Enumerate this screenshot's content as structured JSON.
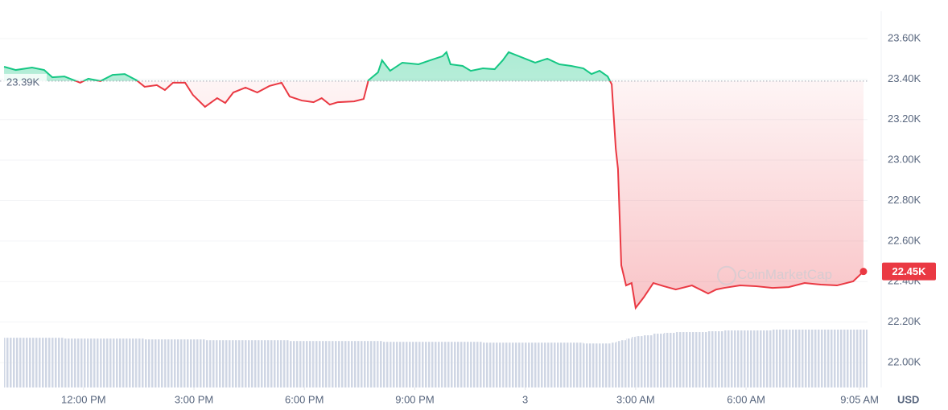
{
  "chart_data": {
    "type": "line",
    "x": [
      -2.16,
      -1.84,
      -1.4,
      -1.07,
      -0.85,
      -0.52,
      -0.09,
      0.13,
      0.46,
      0.79,
      1.12,
      1.44,
      1.66,
      1.99,
      2.21,
      2.43,
      2.76,
      2.97,
      3.3,
      3.63,
      3.85,
      4.07,
      4.4,
      4.72,
      5.05,
      5.38,
      5.6,
      5.93,
      6.25,
      6.47,
      6.69,
      6.91,
      7.35,
      7.61,
      7.74,
      8.0,
      8.11,
      8.33,
      8.66,
      9.1,
      9.42,
      9.75,
      9.86,
      9.97,
      10.3,
      10.52,
      10.85,
      11.17,
      11.39,
      11.55,
      11.94,
      12.27,
      12.6,
      12.93,
      13.25,
      13.58,
      13.8,
      14.02,
      14.24,
      14.35,
      14.46,
      14.52,
      14.61,
      14.74,
      14.89,
      15.0,
      15.22,
      15.48,
      15.77,
      16.09,
      16.53,
      16.97,
      17.19,
      17.41,
      17.84,
      18.28,
      18.72,
      19.16,
      19.59,
      20.03,
      20.47,
      20.91,
      21.19
    ],
    "values": [
      23461,
      23445,
      23457,
      23445,
      23409,
      23413,
      23382,
      23402,
      23390,
      23421,
      23425,
      23394,
      23362,
      23370,
      23346,
      23382,
      23382,
      23322,
      23263,
      23306,
      23282,
      23334,
      23358,
      23334,
      23366,
      23382,
      23314,
      23294,
      23286,
      23306,
      23274,
      23286,
      23290,
      23302,
      23394,
      23433,
      23493,
      23441,
      23481,
      23473,
      23493,
      23513,
      23533,
      23473,
      23465,
      23441,
      23453,
      23449,
      23493,
      23533,
      23505,
      23481,
      23501,
      23473,
      23465,
      23453,
      23425,
      23441,
      23413,
      23374,
      23056,
      22957,
      22480,
      22381,
      22393,
      22270,
      22322,
      22393,
      22377,
      22361,
      22381,
      22341,
      22361,
      22369,
      22381,
      22377,
      22369,
      22373,
      22393,
      22385,
      22381,
      22401,
      22450
    ],
    "volume": [
      61,
      61,
      61,
      61,
      61,
      60,
      60,
      60,
      60,
      60,
      60,
      60,
      59,
      59,
      59,
      59,
      59,
      59,
      58,
      58,
      58,
      58,
      58,
      58,
      58,
      58,
      57,
      57,
      57,
      57,
      57,
      57,
      57,
      57,
      57,
      57,
      56,
      56,
      56,
      56,
      56,
      56,
      56,
      56,
      56,
      56,
      55,
      55,
      55,
      55,
      55,
      55,
      55,
      55,
      55,
      54,
      54,
      54,
      54,
      55,
      56,
      57,
      58,
      60,
      62,
      63,
      64,
      66,
      67,
      68,
      68,
      69,
      69,
      70,
      70,
      70,
      71,
      71,
      71,
      71,
      71,
      71,
      71
    ],
    "up_color": "#16c784",
    "down_color": "#ea3943",
    "baseline": {
      "value": 23390,
      "label": "23.39K"
    },
    "last_value_label": "22.45K",
    "xlim": [
      -2.27,
      21.3
    ],
    "xticks": [
      {
        "value": 0,
        "label": "12:00 PM"
      },
      {
        "value": 3,
        "label": "3:00 PM"
      },
      {
        "value": 6,
        "label": "6:00 PM"
      },
      {
        "value": 9,
        "label": "9:00 PM"
      },
      {
        "value": 12,
        "label": "3"
      },
      {
        "value": 15,
        "label": "3:00 AM"
      },
      {
        "value": 18,
        "label": "6:00 AM"
      },
      {
        "value": 21.083,
        "label": "9:05 AM"
      }
    ],
    "ylim": [
      21877,
      23735
    ],
    "yticks": [
      {
        "value": 22000,
        "label": "22.00K"
      },
      {
        "value": 22200,
        "label": "22.20K"
      },
      {
        "value": 22400,
        "label": "22.40K"
      },
      {
        "value": 22600,
        "label": "22.60K"
      },
      {
        "value": 22800,
        "label": "22.80K"
      },
      {
        "value": 23000,
        "label": "23.00K"
      },
      {
        "value": 23200,
        "label": "23.20K"
      },
      {
        "value": 23400,
        "label": "23.40K"
      },
      {
        "value": 23600,
        "label": "23.60K"
      }
    ],
    "y_unit": "USD",
    "watermark": "CoinMarketCap",
    "grid": true
  }
}
